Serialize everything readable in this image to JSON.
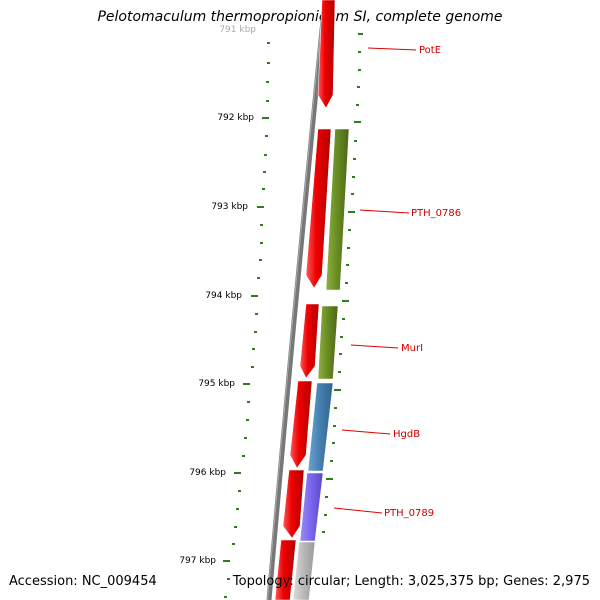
{
  "title": "Pelotomaculum thermopropionicum SI, complete genome",
  "accession_text": "Accession: NC_009454",
  "summary_text": "Topology: circular; Length: 3,025,375 bp; Genes: 2,975",
  "ticks": [
    {
      "label": "791 kbp",
      "faded": true
    },
    {
      "label": "792 kbp",
      "faded": false
    },
    {
      "label": "793 kbp",
      "faded": false
    },
    {
      "label": "794 kbp",
      "faded": false
    },
    {
      "label": "795 kbp",
      "faded": false
    },
    {
      "label": "796 kbp",
      "faded": false
    },
    {
      "label": "797 kbp",
      "faded": false
    }
  ],
  "gene_labels": [
    "PotE",
    "PTH_0786",
    "MurI",
    "HgdB",
    "PTH_0789"
  ],
  "colors": {
    "backbone": "#777777",
    "tick": "#2e7d1c",
    "label_line": "#e00000",
    "label_text": "#cc0000",
    "red": "#ee0000",
    "olive": "#6b8e23",
    "steel_blue": "#4682b4",
    "slate_blue": "#7b68ee",
    "gray": "#bbbbbb"
  }
}
